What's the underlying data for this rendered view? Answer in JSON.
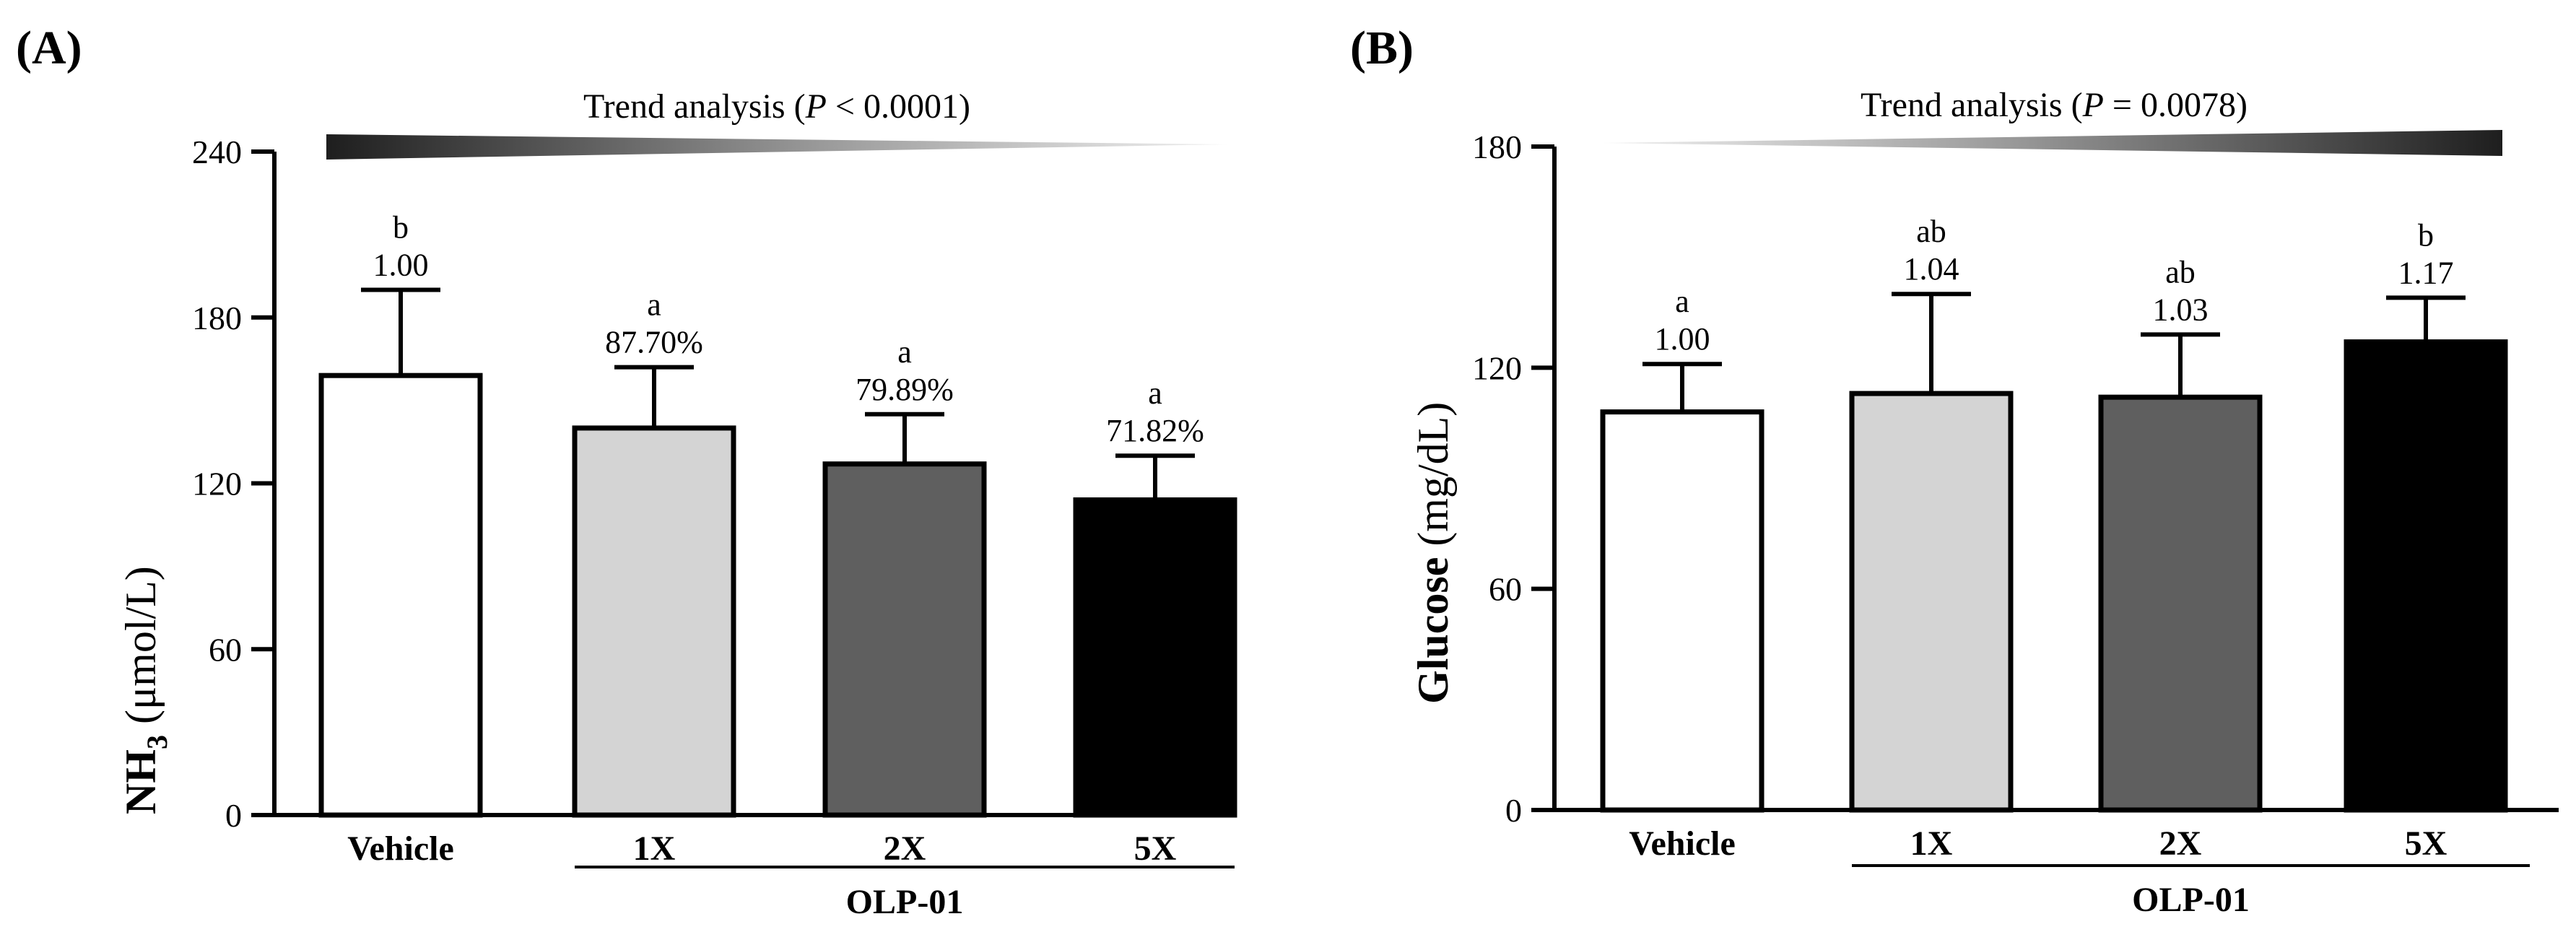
{
  "chart_data": [
    {
      "type": "bar",
      "panel": "(A)",
      "title": "",
      "trend": {
        "prefix": "Trend analysis (",
        "italic": "P",
        "suffix": " < 0.0001)",
        "direction": "decreasing"
      },
      "ylabel": {
        "main": "NH",
        "sub": "3",
        "unit": " (μmol/L)"
      },
      "ylim": [
        0,
        240
      ],
      "yticks": [
        0,
        60,
        120,
        180,
        240
      ],
      "categories": [
        "Vehicle",
        "1X",
        "2X",
        "5X"
      ],
      "group_label": "OLP-01",
      "group_members": [
        "1X",
        "2X",
        "5X"
      ],
      "values": [
        159,
        140,
        127,
        114
      ],
      "errors": [
        31,
        22,
        18,
        16
      ],
      "fill_colors": [
        "#ffffff",
        "#d4d4d4",
        "#5f5f5f",
        "#000000"
      ],
      "letters": [
        "b",
        "a",
        "a",
        "a"
      ],
      "ratios": [
        "1.00",
        "87.70%",
        "79.89%",
        "71.82%"
      ]
    },
    {
      "type": "bar",
      "panel": "(B)",
      "title": "",
      "trend": {
        "prefix": "Trend analysis (",
        "italic": "P",
        "suffix": " = 0.0078)",
        "direction": "increasing"
      },
      "ylabel": {
        "main": "Glucose",
        "sub": "",
        "unit": " (mg/dL)"
      },
      "ylim": [
        0,
        180
      ],
      "yticks": [
        0,
        60,
        120,
        180
      ],
      "categories": [
        "Vehicle",
        "1X",
        "2X",
        "5X"
      ],
      "group_label": "OLP-01",
      "group_members": [
        "1X",
        "2X",
        "5X"
      ],
      "values": [
        108,
        113,
        112,
        127
      ],
      "errors": [
        13,
        27,
        17,
        12
      ],
      "fill_colors": [
        "#ffffff",
        "#d4d4d4",
        "#5f5f5f",
        "#000000"
      ],
      "letters": [
        "a",
        "ab",
        "ab",
        "b"
      ],
      "ratios": [
        "1.00",
        "1.04",
        "1.03",
        "1.17"
      ]
    }
  ]
}
